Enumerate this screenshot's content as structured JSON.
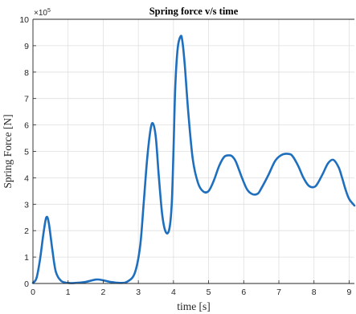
{
  "chart_data": {
    "type": "line",
    "title": "Spring force v/s time",
    "xlabel": "time [s]",
    "ylabel": "Spring Force [N]",
    "y_exponent_base": "×10",
    "y_exponent_power": "5",
    "xlim": [
      0,
      9.15
    ],
    "ylim": [
      0,
      10
    ],
    "xticks": [
      0,
      1,
      2,
      3,
      4,
      5,
      6,
      7,
      8,
      9
    ],
    "xtick_labels": [
      "0",
      "1",
      "2",
      "3",
      "4",
      "5",
      "6",
      "7",
      "8",
      "9"
    ],
    "yticks": [
      0,
      1,
      2,
      3,
      4,
      5,
      6,
      7,
      8,
      9,
      10
    ],
    "ytick_labels": [
      "0",
      "1",
      "2",
      "3",
      "4",
      "5",
      "6",
      "7",
      "8",
      "9",
      "10"
    ],
    "grid": true,
    "line_color": "#1f6fbf",
    "series": [
      {
        "x": [
          0,
          0.1,
          0.2,
          0.3,
          0.38,
          0.45,
          0.55,
          0.65,
          0.8,
          1.0,
          1.2,
          1.5,
          1.8,
          2.0,
          2.2,
          2.5,
          2.7,
          2.9,
          3.05,
          3.15,
          3.25,
          3.35,
          3.42,
          3.5,
          3.58,
          3.68,
          3.78,
          3.88,
          3.95,
          4.0,
          4.05,
          4.12,
          4.2,
          4.25,
          4.32,
          4.42,
          4.55,
          4.7,
          4.85,
          5.0,
          5.15,
          5.3,
          5.45,
          5.6,
          5.68,
          5.78,
          5.95,
          6.1,
          6.25,
          6.4,
          6.5,
          6.7,
          6.9,
          7.1,
          7.3,
          7.4,
          7.55,
          7.7,
          7.85,
          8.0,
          8.1,
          8.25,
          8.4,
          8.55,
          8.7,
          8.8,
          8.9,
          9.0,
          9.15
        ],
        "y": [
          0.02,
          0.2,
          0.9,
          1.9,
          2.5,
          2.3,
          1.3,
          0.45,
          0.1,
          0.02,
          0.02,
          0.06,
          0.15,
          0.12,
          0.06,
          0.02,
          0.08,
          0.4,
          1.4,
          3.0,
          4.7,
          5.85,
          6.05,
          5.5,
          4.1,
          2.6,
          1.95,
          2.05,
          3.0,
          5.0,
          7.4,
          8.9,
          9.35,
          9.2,
          8.3,
          6.5,
          4.7,
          3.8,
          3.48,
          3.5,
          3.9,
          4.45,
          4.8,
          4.85,
          4.8,
          4.6,
          4.0,
          3.55,
          3.38,
          3.4,
          3.6,
          4.1,
          4.65,
          4.88,
          4.9,
          4.8,
          4.45,
          4.0,
          3.7,
          3.65,
          3.78,
          4.15,
          4.55,
          4.68,
          4.4,
          4.0,
          3.55,
          3.2,
          2.95
        ]
      }
    ]
  }
}
